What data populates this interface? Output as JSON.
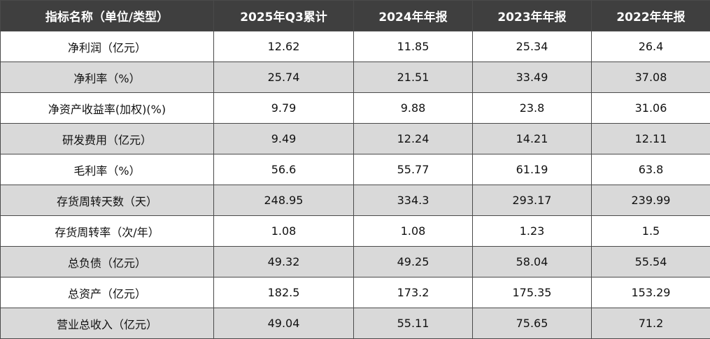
{
  "table": {
    "header": [
      "指标名称（单位/类型）",
      "2025年Q3累计",
      "2024年年报",
      "2023年年报",
      "2022年年报"
    ],
    "rows": [
      [
        "净利润（亿元）",
        12.62,
        11.85,
        25.34,
        26.4
      ],
      [
        "净利率（%）",
        25.74,
        21.51,
        33.49,
        37.08
      ],
      [
        "净资产收益率(加权)(%)",
        9.79,
        9.88,
        23.8,
        31.06
      ],
      [
        "研发费用（亿元）",
        9.49,
        12.24,
        14.21,
        12.11
      ],
      [
        "毛利率（%）",
        56.6,
        55.77,
        61.19,
        63.8
      ],
      [
        "存货周转天数（天）",
        248.95,
        334.3,
        293.17,
        239.99
      ],
      [
        "存货周转率（次/年）",
        1.08,
        1.08,
        1.23,
        1.5
      ],
      [
        "总负债（亿元）",
        49.32,
        49.25,
        58.04,
        55.54
      ],
      [
        "总资产（亿元）",
        182.5,
        173.2,
        175.35,
        153.29
      ],
      [
        "营业总收入（亿元）",
        49.04,
        55.11,
        75.65,
        71.2
      ]
    ]
  }
}
